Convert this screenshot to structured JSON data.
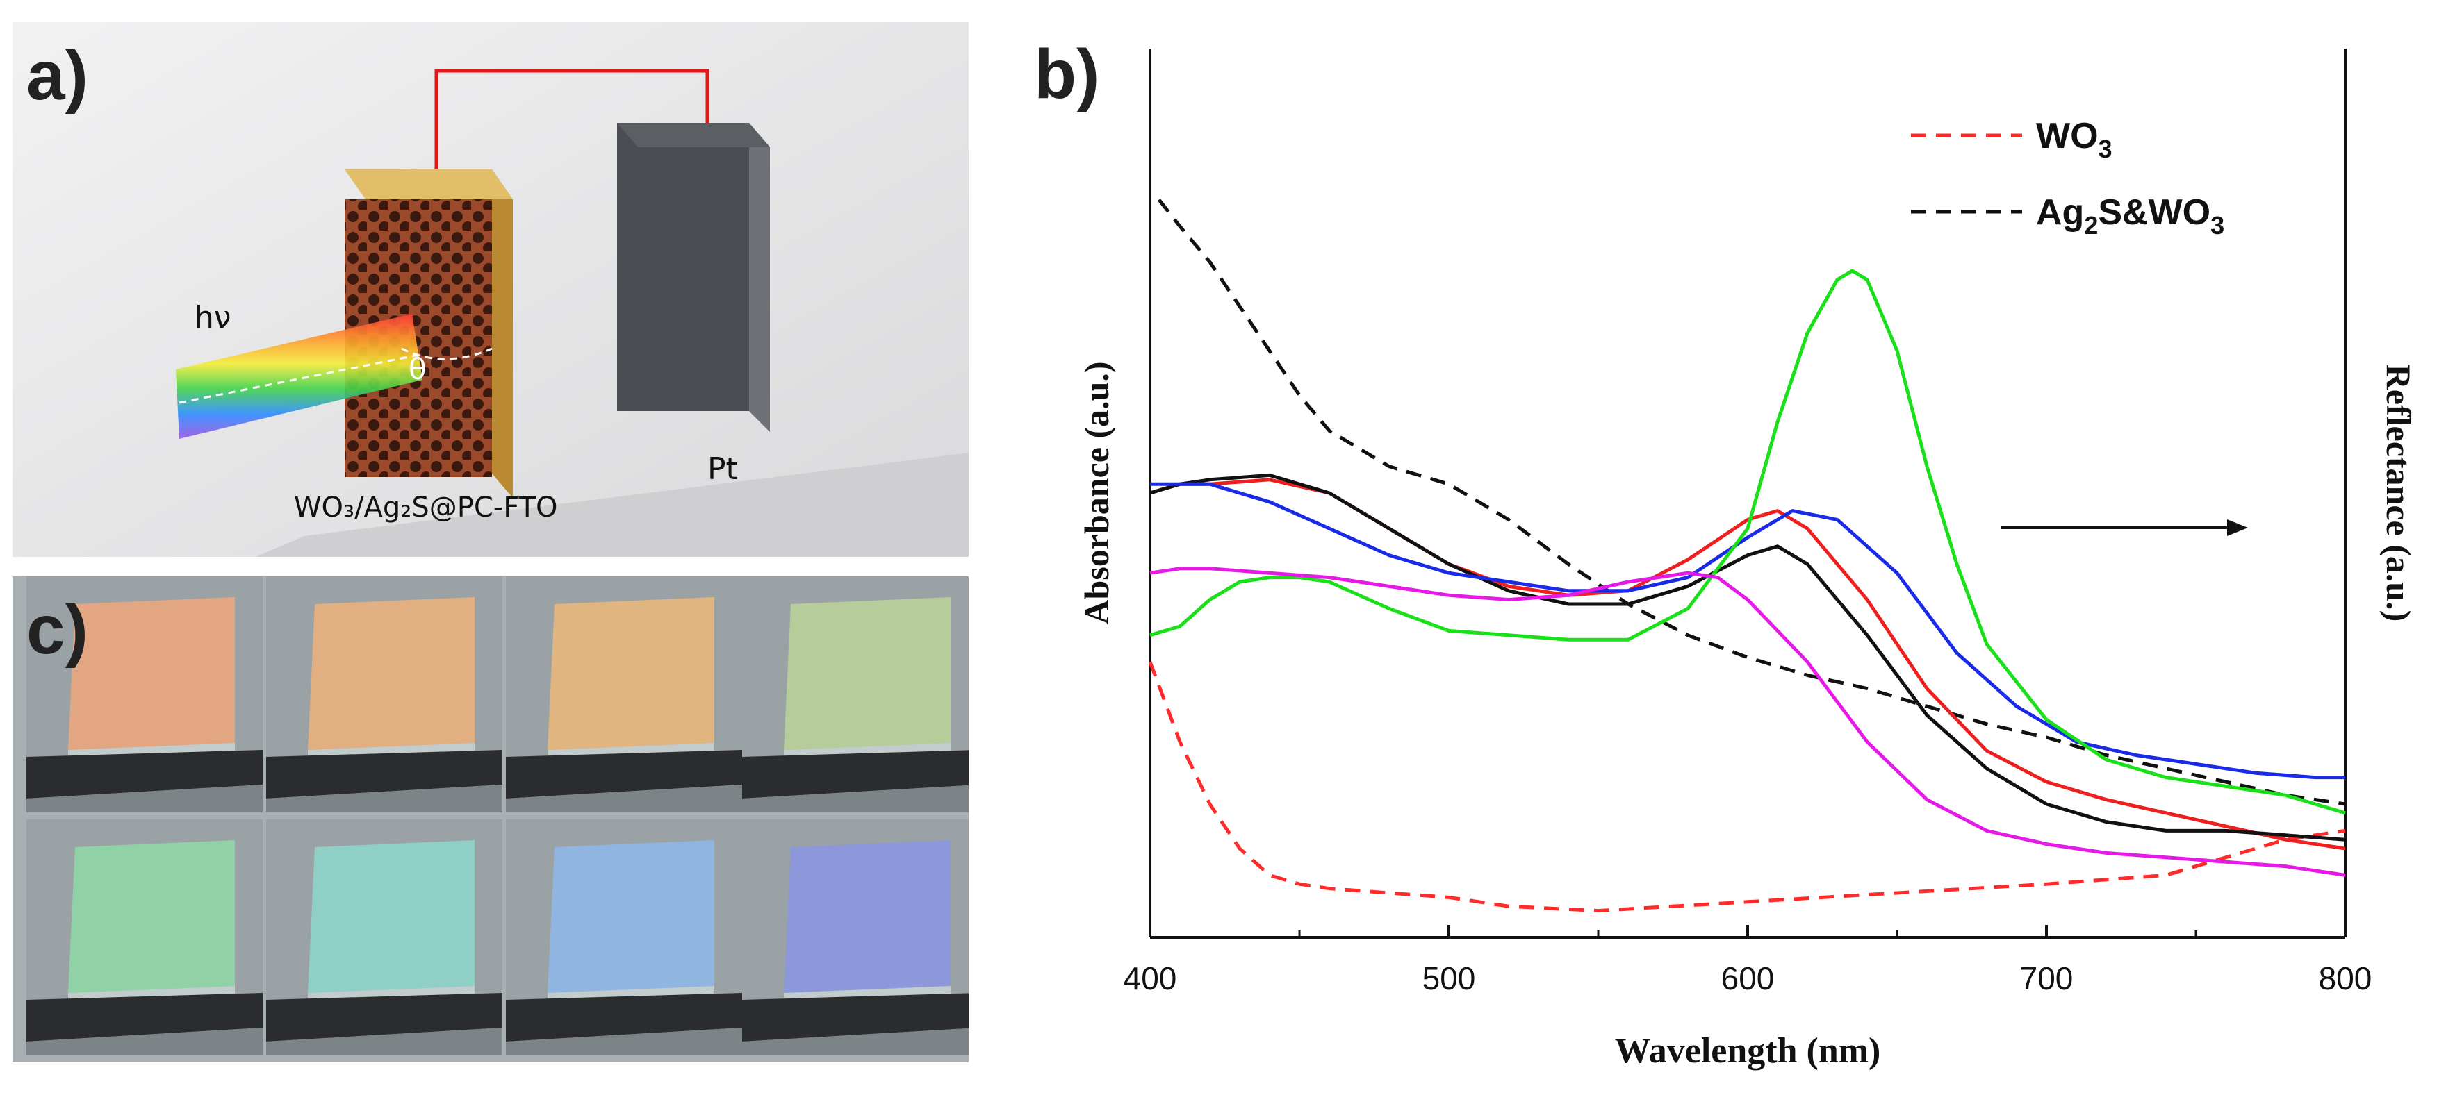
{
  "panels": {
    "a": {
      "letter": "a)",
      "hv": "hν",
      "theta": "θ",
      "pt": "Pt",
      "sample": "WO₃/Ag₂S@PC-FTO"
    },
    "b": {
      "letter": "b)"
    },
    "c": {
      "letter": "c)"
    }
  },
  "photos": [
    {
      "color": "#e8a77f"
    },
    {
      "color": "#e8b07f"
    },
    {
      "color": "#e6b67c"
    },
    {
      "color": "#b8cf9a"
    },
    {
      "color": "#8fd6a6"
    },
    {
      "color": "#8fd2c8"
    },
    {
      "color": "#8fb6e6"
    },
    {
      "color": "#8c97e0"
    }
  ],
  "chart_data": {
    "type": "line",
    "xlabel": "Wavelength (nm)",
    "ylabel_left": "Absorbance (a.u.)",
    "ylabel_right": "Reflectance (a.u.)",
    "xlim": [
      400,
      800
    ],
    "ylim": [
      0,
      1
    ],
    "xticks": [
      "400",
      "500",
      "600",
      "700",
      "800"
    ],
    "legend": [
      {
        "label": "WO",
        "sub": "3",
        "style": "dashed",
        "color": "#ff2a2a"
      },
      {
        "label": "Ag",
        "sub": "2",
        "label2": "S&WO",
        "sub2": "3",
        "style": "dashed",
        "color": "#111111"
      }
    ],
    "series": [
      {
        "name": "WO3",
        "style": "dashed",
        "color": "#ff2a2a",
        "x": [
          400,
          410,
          420,
          430,
          440,
          450,
          460,
          480,
          500,
          520,
          550,
          600,
          650,
          700,
          740,
          760,
          780,
          800
        ],
        "y": [
          0.31,
          0.22,
          0.15,
          0.1,
          0.07,
          0.06,
          0.055,
          0.05,
          0.045,
          0.035,
          0.03,
          0.04,
          0.05,
          0.06,
          0.07,
          0.09,
          0.11,
          0.12
        ]
      },
      {
        "name": "Ag2S&WO3",
        "style": "dashed",
        "color": "#111111",
        "x": [
          403,
          410,
          420,
          430,
          440,
          450,
          460,
          470,
          480,
          490,
          500,
          520,
          540,
          560,
          580,
          600,
          620,
          640,
          660,
          680,
          700,
          720,
          740,
          760,
          780,
          800
        ],
        "y": [
          0.83,
          0.8,
          0.76,
          0.71,
          0.66,
          0.61,
          0.57,
          0.55,
          0.53,
          0.52,
          0.51,
          0.47,
          0.42,
          0.375,
          0.34,
          0.315,
          0.295,
          0.28,
          0.26,
          0.24,
          0.225,
          0.205,
          0.19,
          0.175,
          0.16,
          0.15
        ]
      },
      {
        "name": "red",
        "style": "solid",
        "color": "#ee1f1f",
        "x": [
          400,
          410,
          420,
          440,
          460,
          480,
          500,
          520,
          540,
          560,
          580,
          600,
          610,
          620,
          640,
          660,
          680,
          700,
          720,
          740,
          760,
          780,
          800
        ],
        "y": [
          0.5,
          0.51,
          0.51,
          0.515,
          0.5,
          0.46,
          0.42,
          0.395,
          0.385,
          0.39,
          0.425,
          0.47,
          0.48,
          0.46,
          0.38,
          0.28,
          0.21,
          0.175,
          0.155,
          0.14,
          0.125,
          0.11,
          0.1
        ]
      },
      {
        "name": "black",
        "style": "solid",
        "color": "#111111",
        "x": [
          400,
          410,
          420,
          440,
          460,
          480,
          500,
          520,
          540,
          560,
          580,
          600,
          610,
          620,
          640,
          660,
          680,
          700,
          720,
          740,
          760,
          780,
          800
        ],
        "y": [
          0.5,
          0.51,
          0.515,
          0.52,
          0.5,
          0.46,
          0.42,
          0.39,
          0.375,
          0.375,
          0.395,
          0.43,
          0.44,
          0.42,
          0.34,
          0.25,
          0.19,
          0.15,
          0.13,
          0.12,
          0.12,
          0.115,
          0.11
        ]
      },
      {
        "name": "blue",
        "style": "solid",
        "color": "#1a2be8",
        "x": [
          400,
          410,
          420,
          440,
          460,
          480,
          500,
          520,
          540,
          560,
          580,
          600,
          615,
          630,
          650,
          670,
          690,
          710,
          730,
          750,
          770,
          790,
          800
        ],
        "y": [
          0.51,
          0.51,
          0.51,
          0.49,
          0.46,
          0.43,
          0.41,
          0.4,
          0.39,
          0.39,
          0.405,
          0.45,
          0.48,
          0.47,
          0.41,
          0.32,
          0.26,
          0.22,
          0.205,
          0.195,
          0.185,
          0.18,
          0.18
        ]
      },
      {
        "name": "green",
        "style": "solid",
        "color": "#19e019",
        "x": [
          400,
          410,
          420,
          430,
          440,
          450,
          460,
          480,
          500,
          520,
          540,
          560,
          580,
          600,
          610,
          620,
          630,
          635,
          640,
          650,
          660,
          670,
          680,
          700,
          720,
          740,
          760,
          780,
          800
        ],
        "y": [
          0.34,
          0.35,
          0.38,
          0.4,
          0.405,
          0.405,
          0.4,
          0.37,
          0.345,
          0.34,
          0.335,
          0.335,
          0.37,
          0.46,
          0.58,
          0.68,
          0.74,
          0.75,
          0.74,
          0.66,
          0.53,
          0.42,
          0.33,
          0.245,
          0.2,
          0.18,
          0.17,
          0.16,
          0.14
        ]
      },
      {
        "name": "magenta",
        "style": "solid",
        "color": "#e61ae6",
        "x": [
          400,
          410,
          420,
          440,
          460,
          480,
          500,
          520,
          540,
          560,
          580,
          590,
          600,
          620,
          640,
          660,
          680,
          700,
          720,
          740,
          760,
          780,
          800
        ],
        "y": [
          0.41,
          0.415,
          0.415,
          0.41,
          0.405,
          0.395,
          0.385,
          0.38,
          0.385,
          0.4,
          0.41,
          0.405,
          0.38,
          0.31,
          0.22,
          0.155,
          0.12,
          0.105,
          0.095,
          0.09,
          0.085,
          0.08,
          0.07
        ]
      }
    ]
  }
}
